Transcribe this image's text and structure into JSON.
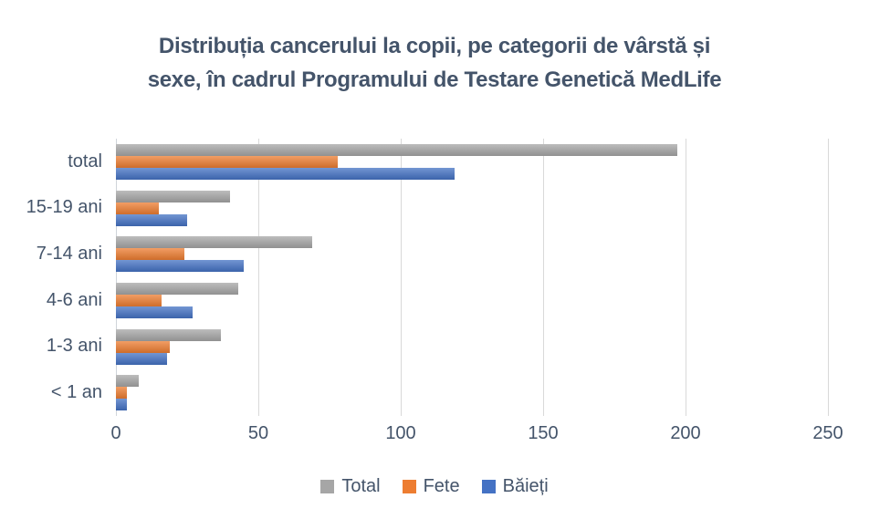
{
  "page": {
    "background": "#FFFFFF",
    "text_color": "#44546A"
  },
  "title": {
    "text": "Distribuția cancerului la copii, pe categorii de vârstă și sexe, în cadrul Programului de Testare Genetică MedLife",
    "lines": [
      "Distribuția cancerului la copii, pe categorii de vârstă și",
      "sexe, în cadrul Programului de Testare Genetică MedLife"
    ],
    "color": "#44546A"
  },
  "chart_data": {
    "type": "bar",
    "orientation": "horizontal",
    "title": "Distribuția cancerului la copii, pe categorii de vârstă și sexe, în cadrul Programului de Testare Genetică MedLife",
    "categories": [
      "total",
      "15-19 ani",
      "7-14 ani",
      "4-6 ani",
      "1-3 ani",
      "< 1 an"
    ],
    "series": [
      {
        "name": "Total",
        "color": "#A6A6A6",
        "values": [
          197,
          40,
          69,
          43,
          37,
          8
        ]
      },
      {
        "name": "Fete",
        "color": "#ED7D31",
        "values": [
          78,
          15,
          24,
          16,
          19,
          4
        ]
      },
      {
        "name": "Băieți",
        "color": "#4472C4",
        "values": [
          119,
          25,
          45,
          27,
          18,
          4
        ]
      }
    ],
    "xlabel": "",
    "ylabel": "",
    "xlim": [
      0,
      250
    ],
    "xticks": [
      0,
      50,
      100,
      150,
      200,
      250
    ],
    "grid": true,
    "gridline_color": "#D9D9D9",
    "axis_text_color": "#44546A",
    "legend_position": "bottom",
    "legend": [
      "Total",
      "Fete",
      "Băieți"
    ]
  }
}
